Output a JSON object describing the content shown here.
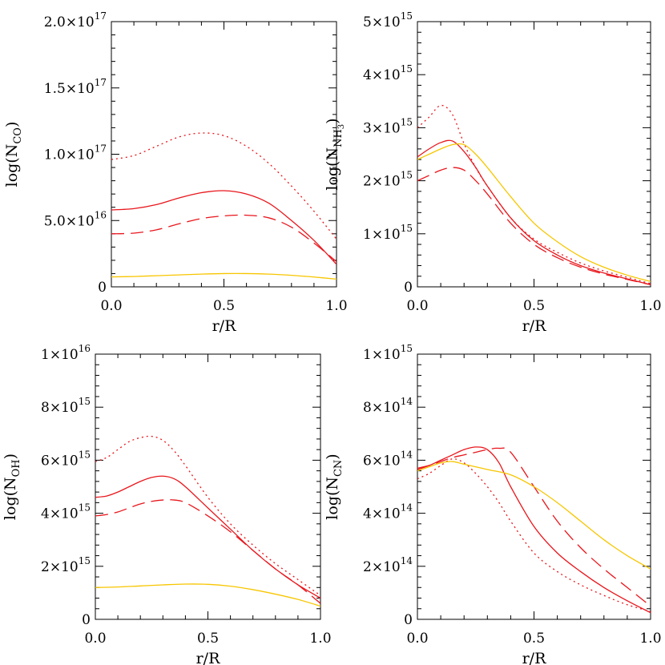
{
  "x_label": "r/R",
  "colors": {
    "red": "#e8161c",
    "yellow": "#f7c600"
  },
  "chart_data": [
    {
      "type": "line",
      "id": "co",
      "ylabel_main": "log(N",
      "ylabel_sub": "CO",
      "ylabel_subsub": "",
      "ylabel_close": ")",
      "xlim": [
        0,
        1
      ],
      "ylim": [
        0,
        2e+17
      ],
      "x_ticks": [
        "0.0",
        "0.5",
        "1.0"
      ],
      "y_ticks": [
        {
          "value": 0,
          "mant": "0",
          "exp": ""
        },
        {
          "value": 5e+16,
          "mant": "5.0×10",
          "exp": "16"
        },
        {
          "value": 1e+17,
          "mant": "1.0×10",
          "exp": "17"
        },
        {
          "value": 1.5e+17,
          "mant": "1.5×10",
          "exp": "17"
        },
        {
          "value": 2e+17,
          "mant": "2.0×10",
          "exp": "17"
        }
      ],
      "series": [
        {
          "name": "red-dotted",
          "color": "red",
          "dash": "dotted",
          "x": [
            0,
            0.1,
            0.2,
            0.3,
            0.4,
            0.5,
            0.6,
            0.7,
            0.8,
            0.9,
            1.0
          ],
          "y": [
            9.6e+16,
            9.9e+16,
            1.06e+17,
            1.13e+17,
            1.16e+17,
            1.14e+17,
            1.06e+17,
            9.3e+16,
            7.6e+16,
            5.7e+16,
            3.6e+16
          ]
        },
        {
          "name": "red-solid",
          "color": "red",
          "dash": "solid",
          "x": [
            0,
            0.1,
            0.2,
            0.3,
            0.4,
            0.5,
            0.6,
            0.7,
            0.8,
            0.9,
            1.0
          ],
          "y": [
            5.8e+16,
            5.9e+16,
            6.2e+16,
            6.7e+16,
            7.1e+16,
            7.25e+16,
            7e+16,
            6.3e+16,
            5e+16,
            3.5e+16,
            1.7e+16
          ]
        },
        {
          "name": "red-dashed",
          "color": "red",
          "dash": "dashed",
          "x": [
            0,
            0.1,
            0.2,
            0.3,
            0.4,
            0.5,
            0.6,
            0.7,
            0.8,
            0.9,
            1.0
          ],
          "y": [
            4e+16,
            4.05e+16,
            4.3e+16,
            4.75e+16,
            5.15e+16,
            5.35e+16,
            5.4e+16,
            5.2e+16,
            4.5e+16,
            3.3e+16,
            1.9e+16
          ]
        },
        {
          "name": "yellow-solid",
          "color": "yellow",
          "dash": "solid",
          "x": [
            0,
            0.1,
            0.2,
            0.3,
            0.4,
            0.5,
            0.6,
            0.7,
            0.8,
            0.9,
            1.0
          ],
          "y": [
            7500000000000000.0,
            7800000000000000.0,
            8400000000000000.0,
            9000000000000000.0,
            9600000000000000.0,
            1e+16,
            1e+16,
            9600000000000000.0,
            8700000000000000.0,
            7400000000000000.0,
            5800000000000000.0
          ]
        }
      ]
    },
    {
      "type": "line",
      "id": "nh3",
      "ylabel_main": "log(N",
      "ylabel_sub": "NH",
      "ylabel_subsub": "3",
      "ylabel_close": ")",
      "xlim": [
        0,
        1
      ],
      "ylim": [
        0,
        5000000000000000.0
      ],
      "x_ticks": [
        "0.0",
        "0.5",
        "1.0"
      ],
      "y_ticks": [
        {
          "value": 0,
          "mant": "0",
          "exp": ""
        },
        {
          "value": 1000000000000000.0,
          "mant": "1×10",
          "exp": "15"
        },
        {
          "value": 2000000000000000.0,
          "mant": "2×10",
          "exp": "15"
        },
        {
          "value": 3000000000000000.0,
          "mant": "3×10",
          "exp": "15"
        },
        {
          "value": 4000000000000000.0,
          "mant": "4×10",
          "exp": "15"
        },
        {
          "value": 5000000000000000.0,
          "mant": "5×10",
          "exp": "15"
        }
      ],
      "series": [
        {
          "name": "red-dotted",
          "color": "red",
          "dash": "dotted",
          "x": [
            0,
            0.05,
            0.1,
            0.15,
            0.2,
            0.25,
            0.3,
            0.4,
            0.5,
            0.6,
            0.7,
            0.8,
            0.9,
            1.0
          ],
          "y": [
            3000000000000000.0,
            3200000000000000.0,
            3420000000000000.0,
            3250000000000000.0,
            2700000000000000.0,
            2250000000000000.0,
            1900000000000000.0,
            1300000000000000.0,
            900000000000000.0,
            650000000000000.0,
            450000000000000.0,
            300000000000000.0,
            180000000000000.0,
            60000000000000.0
          ]
        },
        {
          "name": "red-solid",
          "color": "red",
          "dash": "solid",
          "x": [
            0,
            0.05,
            0.1,
            0.15,
            0.2,
            0.25,
            0.3,
            0.4,
            0.5,
            0.6,
            0.7,
            0.8,
            0.9,
            1.0
          ],
          "y": [
            2450000000000000.0,
            2600000000000000.0,
            2720000000000000.0,
            2750000000000000.0,
            2550000000000000.0,
            2250000000000000.0,
            1900000000000000.0,
            1300000000000000.0,
            870000000000000.0,
            600000000000000.0,
            400000000000000.0,
            260000000000000.0,
            150000000000000.0,
            40000000000000.0
          ]
        },
        {
          "name": "red-dashed",
          "color": "red",
          "dash": "dashed",
          "x": [
            0,
            0.05,
            0.1,
            0.15,
            0.2,
            0.25,
            0.3,
            0.4,
            0.5,
            0.6,
            0.7,
            0.8,
            0.9,
            1.0
          ],
          "y": [
            2000000000000000.0,
            2100000000000000.0,
            2200000000000000.0,
            2250000000000000.0,
            2200000000000000.0,
            2000000000000000.0,
            1750000000000000.0,
            1200000000000000.0,
            800000000000000.0,
            550000000000000.0,
            370000000000000.0,
            240000000000000.0,
            140000000000000.0,
            40000000000000.0
          ]
        },
        {
          "name": "yellow-solid",
          "color": "yellow",
          "dash": "solid",
          "x": [
            0,
            0.05,
            0.1,
            0.15,
            0.2,
            0.25,
            0.3,
            0.4,
            0.5,
            0.6,
            0.7,
            0.8,
            0.9,
            1.0
          ],
          "y": [
            2400000000000000.0,
            2500000000000000.0,
            2600000000000000.0,
            2680000000000000.0,
            2680000000000000.0,
            2500000000000000.0,
            2250000000000000.0,
            1700000000000000.0,
            1200000000000000.0,
            850000000000000.0,
            570000000000000.0,
            370000000000000.0,
            220000000000000.0,
            100000000000000.0
          ]
        }
      ]
    },
    {
      "type": "line",
      "id": "oh",
      "ylabel_main": "log(N",
      "ylabel_sub": "OH",
      "ylabel_subsub": "",
      "ylabel_close": ")",
      "xlim": [
        0,
        1
      ],
      "ylim": [
        0,
        1e+16
      ],
      "x_ticks": [
        "0.0",
        "0.5",
        "1.0"
      ],
      "y_ticks": [
        {
          "value": 0,
          "mant": "0",
          "exp": ""
        },
        {
          "value": 2000000000000000.0,
          "mant": "2×10",
          "exp": "15"
        },
        {
          "value": 4000000000000000.0,
          "mant": "4×10",
          "exp": "15"
        },
        {
          "value": 6000000000000000.0,
          "mant": "6×10",
          "exp": "15"
        },
        {
          "value": 8000000000000000.0,
          "mant": "8×10",
          "exp": "15"
        },
        {
          "value": 1e+16,
          "mant": "1×10",
          "exp": "16"
        }
      ],
      "series": [
        {
          "name": "red-dotted",
          "color": "red",
          "dash": "dotted",
          "x": [
            0,
            0.05,
            0.1,
            0.15,
            0.2,
            0.25,
            0.3,
            0.35,
            0.4,
            0.5,
            0.6,
            0.7,
            0.8,
            0.9,
            1.0
          ],
          "y": [
            5950000000000000.0,
            6100000000000000.0,
            6400000000000000.0,
            6700000000000000.0,
            6850000000000000.0,
            6900000000000000.0,
            6750000000000000.0,
            6350000000000000.0,
            5800000000000000.0,
            4600000000000000.0,
            3600000000000000.0,
            2800000000000000.0,
            2100000000000000.0,
            1500000000000000.0,
            900000000000000.0
          ]
        },
        {
          "name": "red-solid",
          "color": "red",
          "dash": "solid",
          "x": [
            0,
            0.05,
            0.1,
            0.15,
            0.2,
            0.25,
            0.3,
            0.35,
            0.4,
            0.5,
            0.6,
            0.7,
            0.8,
            0.9,
            1.0
          ],
          "y": [
            4600000000000000.0,
            4650000000000000.0,
            4800000000000000.0,
            5000000000000000.0,
            5200000000000000.0,
            5350000000000000.0,
            5400000000000000.0,
            5300000000000000.0,
            5000000000000000.0,
            4200000000000000.0,
            3400000000000000.0,
            2600000000000000.0,
            1900000000000000.0,
            1300000000000000.0,
            800000000000000.0
          ]
        },
        {
          "name": "red-dashed",
          "color": "red",
          "dash": "dashed",
          "x": [
            0,
            0.05,
            0.1,
            0.15,
            0.2,
            0.25,
            0.3,
            0.35,
            0.4,
            0.5,
            0.6,
            0.7,
            0.8,
            0.9,
            1.0
          ],
          "y": [
            3900000000000000.0,
            3950000000000000.0,
            4050000000000000.0,
            4200000000000000.0,
            4350000000000000.0,
            4450000000000000.0,
            4500000000000000.0,
            4500000000000000.0,
            4400000000000000.0,
            3900000000000000.0,
            3300000000000000.0,
            2600000000000000.0,
            1900000000000000.0,
            1300000000000000.0,
            600000000000000.0
          ]
        },
        {
          "name": "yellow-solid",
          "color": "yellow",
          "dash": "solid",
          "x": [
            0,
            0.1,
            0.2,
            0.3,
            0.4,
            0.5,
            0.6,
            0.7,
            0.8,
            0.9,
            1.0
          ],
          "y": [
            1200000000000000.0,
            1220000000000000.0,
            1260000000000000.0,
            1300000000000000.0,
            1330000000000000.0,
            1320000000000000.0,
            1250000000000000.0,
            1120000000000000.0,
            950000000000000.0,
            750000000000000.0,
            500000000000000.0
          ]
        }
      ]
    },
    {
      "type": "line",
      "id": "cn",
      "ylabel_main": "log(N",
      "ylabel_sub": "CN",
      "ylabel_subsub": "",
      "ylabel_close": ")",
      "xlim": [
        0,
        1
      ],
      "ylim": [
        0,
        1000000000000000.0
      ],
      "x_ticks": [
        "0.0",
        "0.5",
        "1.0"
      ],
      "y_ticks": [
        {
          "value": 0,
          "mant": "0",
          "exp": ""
        },
        {
          "value": 200000000000000.0,
          "mant": "2×10",
          "exp": "14"
        },
        {
          "value": 400000000000000.0,
          "mant": "4×10",
          "exp": "14"
        },
        {
          "value": 600000000000000.0,
          "mant": "6×10",
          "exp": "14"
        },
        {
          "value": 800000000000000.0,
          "mant": "8×10",
          "exp": "14"
        },
        {
          "value": 1000000000000000.0,
          "mant": "1×10",
          "exp": "15"
        }
      ],
      "series": [
        {
          "name": "red-dotted",
          "color": "red",
          "dash": "dotted",
          "x": [
            0,
            0.05,
            0.1,
            0.15,
            0.2,
            0.25,
            0.3,
            0.35,
            0.4,
            0.5,
            0.6,
            0.7,
            0.8,
            0.9,
            1.0
          ],
          "y": [
            530000000000000.0,
            550000000000000.0,
            580000000000000.0,
            605000000000000.0,
            590000000000000.0,
            550000000000000.0,
            500000000000000.0,
            440000000000000.0,
            370000000000000.0,
            250000000000000.0,
            180000000000000.0,
            130000000000000.0,
            90000000000000.0,
            55000000000000.0,
            30000000000000.0
          ]
        },
        {
          "name": "red-solid",
          "color": "red",
          "dash": "solid",
          "x": [
            0,
            0.05,
            0.1,
            0.15,
            0.2,
            0.25,
            0.3,
            0.35,
            0.4,
            0.5,
            0.6,
            0.7,
            0.8,
            0.9,
            1.0
          ],
          "y": [
            565000000000000.0,
            580000000000000.0,
            600000000000000.0,
            620000000000000.0,
            640000000000000.0,
            650000000000000.0,
            640000000000000.0,
            590000000000000.0,
            500000000000000.0,
            350000000000000.0,
            250000000000000.0,
            180000000000000.0,
            120000000000000.0,
            70000000000000.0,
            25000000000000.0
          ]
        },
        {
          "name": "red-dashed",
          "color": "red",
          "dash": "dashed",
          "x": [
            0,
            0.05,
            0.1,
            0.15,
            0.2,
            0.25,
            0.3,
            0.35,
            0.4,
            0.5,
            0.6,
            0.7,
            0.8,
            0.9,
            1.0
          ],
          "y": [
            570000000000000.0,
            580000000000000.0,
            595000000000000.0,
            610000000000000.0,
            620000000000000.0,
            630000000000000.0,
            640000000000000.0,
            645000000000000.0,
            630000000000000.0,
            500000000000000.0,
            370000000000000.0,
            270000000000000.0,
            190000000000000.0,
            120000000000000.0,
            50000000000000.0
          ]
        },
        {
          "name": "yellow-solid",
          "color": "yellow",
          "dash": "solid",
          "x": [
            0,
            0.05,
            0.1,
            0.15,
            0.2,
            0.3,
            0.4,
            0.5,
            0.6,
            0.7,
            0.8,
            0.9,
            1.0
          ],
          "y": [
            560000000000000.0,
            575000000000000.0,
            590000000000000.0,
            595000000000000.0,
            585000000000000.0,
            565000000000000.0,
            545000000000000.0,
            500000000000000.0,
            440000000000000.0,
            370000000000000.0,
            300000000000000.0,
            240000000000000.0,
            190000000000000.0
          ]
        }
      ]
    }
  ]
}
